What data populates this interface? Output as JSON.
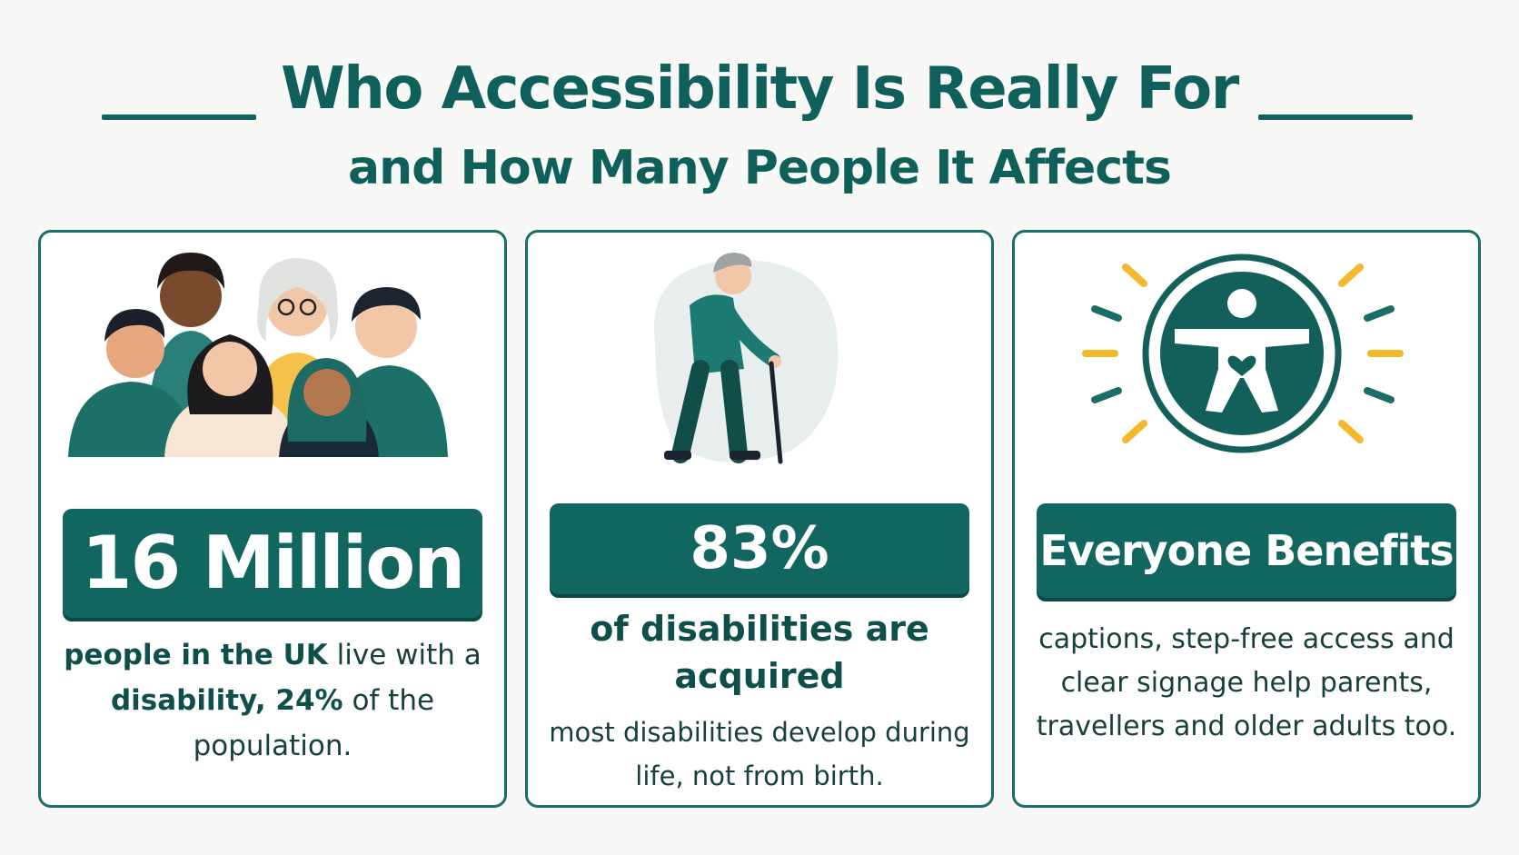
{
  "title": {
    "main": "Who Accessibility Is Really For",
    "sub": "and How Many People It Affects"
  },
  "colors": {
    "teal": "#11665f",
    "teal_dark": "#0f5551",
    "accent_yellow": "#f2b92c",
    "card_border": "#1a6d68"
  },
  "cards": [
    {
      "illustration": "diverse-group-of-people",
      "stat": "16 Million",
      "desc_bold_1": "people in the UK",
      "desc_1": " live with a ",
      "desc_bold_2": "disability, 24%",
      "desc_2": " of the population."
    },
    {
      "illustration": "older-man-walking-with-cane",
      "stat": "83%",
      "lead": "of disabilities are acquired",
      "desc": "most disabilities develop during life, not from birth."
    },
    {
      "illustration": "accessibility-symbol-icon",
      "stat": "Everyone Benefits",
      "desc": "captions, step-free access and clear signage help parents, travellers and older adults too."
    }
  ]
}
